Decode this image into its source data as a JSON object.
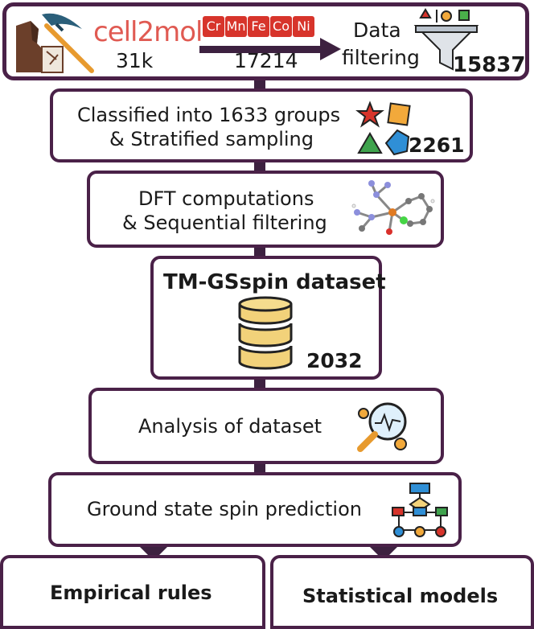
{
  "stage1": {
    "source_name": "cell2mol",
    "source_count": "31k",
    "elements": [
      "Cr",
      "Mn",
      "Fe",
      "Co",
      "Ni"
    ],
    "element_count": "17214",
    "filter_label_line1": "Data",
    "filter_label_line2": "filtering",
    "filter_count": "15837"
  },
  "stage2": {
    "line1": "Classified into 1633 groups",
    "line2": "& Stratified sampling",
    "count": "2261"
  },
  "stage3": {
    "line1": "DFT computations",
    "line2": "& Sequential filtering"
  },
  "stage4": {
    "title": "TM-GSspin dataset",
    "count": "2032"
  },
  "stage5": {
    "label": "Analysis of dataset"
  },
  "stage6": {
    "label": "Ground state spin prediction"
  },
  "outputs": {
    "left": "Empirical rules",
    "right": "Statistical models"
  },
  "colors": {
    "border": "#4a2148",
    "accent_red": "#d7342b",
    "arrow": "#3d2140",
    "database_gold": "#f2d27a"
  }
}
